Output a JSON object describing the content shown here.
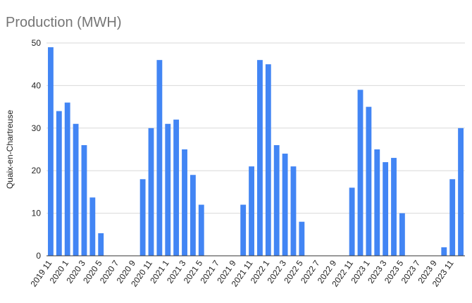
{
  "chart_data": {
    "type": "bar",
    "title": "Production (MWH)",
    "xlabel": "",
    "ylabel": "Quaix-en-Chartreuse",
    "ylim": [
      0,
      50
    ],
    "yticks": [
      0,
      10,
      20,
      30,
      40,
      50
    ],
    "grid": true,
    "bar_color": "#4285f4",
    "categories": [
      "2019 11",
      "2019 12",
      "2020 1",
      "2020 2",
      "2020 3",
      "2020 4",
      "2020 5",
      "2020 6",
      "2020 7",
      "2020 8",
      "2020 9",
      "2020 10",
      "2020 11",
      "2020 12",
      "2021 1",
      "2021 2",
      "2021 3",
      "2021 4",
      "2021 5",
      "2021 6",
      "2021 7",
      "2021 8",
      "2021 9",
      "2021 10",
      "2021 11",
      "2021 12",
      "2022 1",
      "2022 2",
      "2022 3",
      "2022 4",
      "2022 5",
      "2022 6",
      "2022 7",
      "2022 8",
      "2022 9",
      "2022 10",
      "2022 11",
      "2022 12",
      "2023 1",
      "2023 2",
      "2023 3",
      "2023 4",
      "2023 5",
      "2023 6",
      "2023 7",
      "2023 8",
      "2023 9",
      "2023 10",
      "2023 11",
      "2023 12"
    ],
    "visible_x_tick_labels": [
      "2019 11",
      "2020 1",
      "2020 3",
      "2020 5",
      "2020 7",
      "2020 9",
      "2020 11",
      "2021 1",
      "2021 3",
      "2021 5",
      "2021 7",
      "2021 9",
      "2021 11",
      "2022 1",
      "2022 3",
      "2022 5",
      "2022 7",
      "2022 9",
      "2022 11",
      "2023 1",
      "2023 3",
      "2023 5",
      "2023 7",
      "2023 9",
      "2023 11"
    ],
    "values": [
      49,
      34,
      36,
      31,
      26,
      13.7,
      5.3,
      0,
      0,
      0,
      0,
      18,
      30,
      46,
      31,
      32,
      25,
      19,
      12,
      0,
      0,
      0,
      0,
      12,
      21,
      46,
      45,
      26,
      24,
      21,
      8,
      0,
      0,
      0,
      0,
      0,
      16,
      39,
      35,
      25,
      22,
      23,
      10,
      0,
      0,
      0,
      0,
      2,
      18,
      30
    ]
  }
}
